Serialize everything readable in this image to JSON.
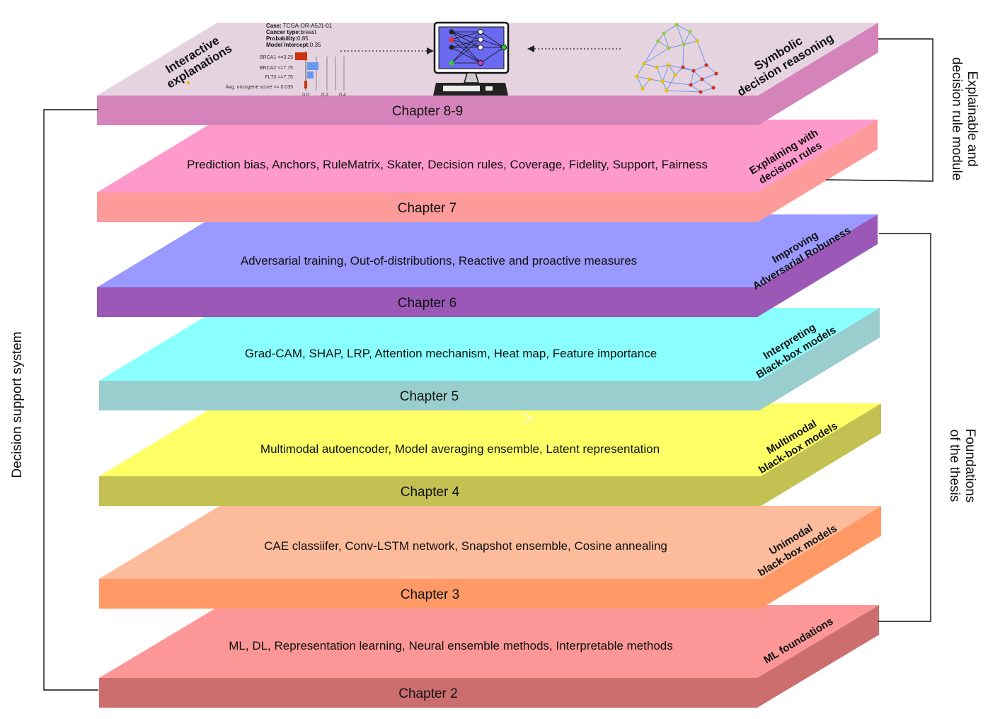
{
  "layers": [
    {
      "chapter": "Chapter 2",
      "description": "ML, DL, Representation learning, Neural ensemble methods, Interpretable methods",
      "side": [
        "ML foundations"
      ],
      "top_color": "#fd9797",
      "front_color": "#cc6e6e",
      "side_color": "#cd6e6e"
    },
    {
      "chapter": "Chapter 3",
      "description": "CAE classiifer, Conv-LSTM network, Snapshot ensemble, Cosine annealing",
      "side": [
        "Unimodal",
        "black-box models"
      ],
      "top_color": "#fcbb9b",
      "front_color": "#ff9966",
      "side_color": "#ff9966"
    },
    {
      "chapter": "Chapter 4",
      "description": "Multimodal autoencoder, Model averaging ensemble, Latent representation",
      "side": [
        "Multimodal",
        "black-box models"
      ],
      "top_color": "#ffff66",
      "front_color": "#c2c152",
      "side_color": "#c2c152"
    },
    {
      "chapter": "Chapter 5",
      "description": "Grad-CAM, SHAP, LRP, Attention mechanism, Heat map, Feature importance",
      "side": [
        "Interpreting",
        "Black-box models"
      ],
      "top_color": "#8affff",
      "front_color": "#9acdcd",
      "side_color": "#9acdcd"
    },
    {
      "chapter": "Chapter 6",
      "description": "Adversarial training, Out-of-distributions, Reactive and proactive measures",
      "side": [
        "Improving",
        "Adversarial Robuness"
      ],
      "top_color": "#9999ff",
      "front_color": "#9b58b7",
      "side_color": "#9b58b7"
    },
    {
      "chapter": "Chapter 7",
      "description": "Prediction bias, Anchors, RuleMatrix, Skater, Decision rules, Coverage, Fidelity, Support, Fairness",
      "side": [
        "Explaining with",
        "decision rules"
      ],
      "top_color": "#fe99cc",
      "front_color": "#fd9a9a",
      "side_color": "#fd9a9a"
    },
    {
      "chapter": "Chapter 8-9",
      "description": "",
      "side": [],
      "top_color": "#e6d3e0",
      "front_color": "#d583bb",
      "side_color": "#d583bb"
    }
  ],
  "top_layer": {
    "left_label": [
      "Interactive",
      "explanations"
    ],
    "right_label": [
      "Symbolic",
      "decision reasoning"
    ],
    "case_info": {
      "case": {
        "label": "Case:",
        "value": "TCGA-OR-A5J1-01"
      },
      "cancer_type": {
        "label": "Cancer type:",
        "value": "breast"
      },
      "probability": {
        "label": "Probability:",
        "value": "0.85"
      },
      "intercept": {
        "label": "Model Intercept:",
        "value": "0.35"
      }
    },
    "mini_chart": {
      "features": [
        "BRCA1 <=3.25",
        "BRCA2 <=7.75",
        "FLT3 <=7.75",
        "Avg. oncogene score >= 0.035"
      ],
      "ticks": [
        "0.0",
        "0.2",
        "0.4"
      ]
    }
  },
  "brackets": {
    "left": "Decision support system",
    "right_top": [
      "Explainable and",
      "decision rule module"
    ],
    "right_bottom": [
      "Foundations",
      "of the thesis"
    ]
  }
}
